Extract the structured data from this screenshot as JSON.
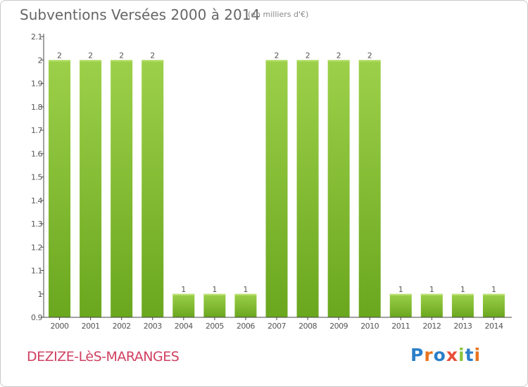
{
  "header": {
    "title": "Subventions Versées 2000 à 2014",
    "unit_note": "(en milliers d'€)"
  },
  "footer": {
    "commune": "DEZIZE-LèS-MARANGES",
    "logo_text": "Proxiti"
  },
  "colors": {
    "bar_top": "#9dd04a",
    "bar_bottom": "#6aa71e",
    "bar_edge": "#b9e070",
    "axis": "#444444",
    "text": "#555555",
    "title": "#666666",
    "commune": "#d04060",
    "logo": [
      "#2c7fc9",
      "#e8731e",
      "#2c7fc9",
      "#e84f3a",
      "#8cc63f",
      "#2c7fc9",
      "#e8731e"
    ]
  },
  "chart_data": {
    "type": "bar",
    "title": "Subventions Versées 2000 à 2014",
    "xlabel": "",
    "ylabel": "",
    "categories": [
      "2000",
      "2001",
      "2002",
      "2003",
      "2004",
      "2005",
      "2006",
      "2007",
      "2008",
      "2009",
      "2010",
      "2011",
      "2012",
      "2013",
      "2014"
    ],
    "values": [
      2,
      2,
      2,
      2,
      1,
      1,
      1,
      2,
      2,
      2,
      2,
      1,
      1,
      1,
      1
    ],
    "value_labels": [
      "2",
      "2",
      "2",
      "2",
      "1",
      "1",
      "1",
      "2",
      "2",
      "2",
      "2",
      "1",
      "1",
      "1",
      "1"
    ],
    "ylim": [
      0.9,
      2.1
    ],
    "yticks": [
      0.9,
      1,
      1.1,
      1.2,
      1.3,
      1.4,
      1.5,
      1.6,
      1.7,
      1.8,
      1.9,
      2,
      2.1
    ],
    "ytick_labels": [
      "0.9",
      "1",
      "1.1",
      "1.2",
      "1.3",
      "1.4",
      "1.5",
      "1.6",
      "1.7",
      "1.8",
      "1.9",
      "2",
      "2.1"
    ],
    "grid": false,
    "legend": "none"
  }
}
